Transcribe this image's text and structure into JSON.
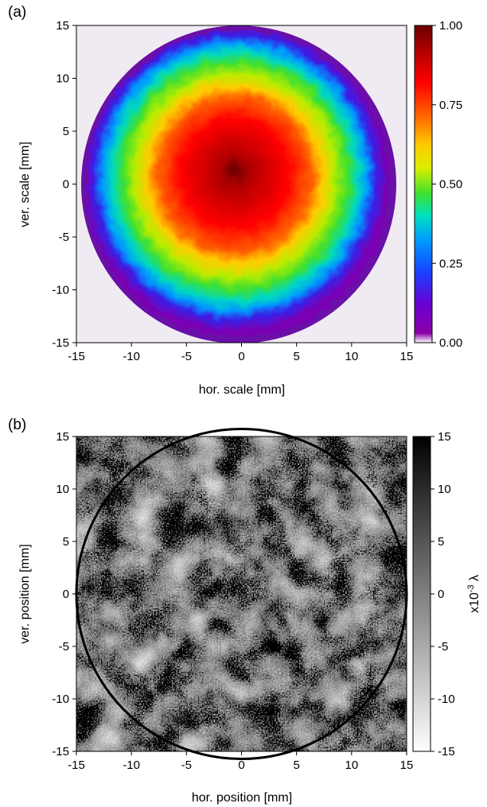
{
  "chart_data": [
    {
      "panel_label": "(a)",
      "type": "heatmap",
      "xlabel": "hor. scale [mm]",
      "ylabel": "ver. scale [mm]",
      "xlim": [
        -15,
        15
      ],
      "ylim": [
        -15,
        15
      ],
      "xticks": [
        -15,
        -10,
        -5,
        0,
        5,
        10,
        15
      ],
      "yticks": [
        15,
        10,
        5,
        0,
        -5,
        -10,
        -15
      ],
      "colorbar": {
        "range": [
          0,
          1
        ],
        "ticks": [
          "1.00",
          "0.75",
          "0.50",
          "0.25",
          "0.00"
        ],
        "colormap": [
          "#ffffff",
          "#7a00b4",
          "#3a1fe6",
          "#0098ff",
          "#00e0c0",
          "#40e030",
          "#d8ee00",
          "#ffcc00",
          "#ff6000",
          "#ff0000",
          "#b00000",
          "#6a0000"
        ],
        "label": ""
      },
      "description_of_field": {
        "beam_center_mm": [
          -0.5,
          0.5
        ],
        "beam_radius_mm": 14.2,
        "peak_value": 1.0,
        "edge_value": 0.1,
        "background_value": 0.02
      }
    },
    {
      "panel_label": "(b)",
      "type": "heatmap",
      "xlabel": "hor. position [mm]",
      "ylabel": "ver. position [mm]",
      "xlim": [
        -15,
        15
      ],
      "ylim": [
        -15,
        15
      ],
      "xticks": [
        -15,
        -10,
        -5,
        0,
        5,
        10,
        15
      ],
      "yticks": [
        15,
        10,
        5,
        0,
        -5,
        -10,
        -15
      ],
      "circle_overlay": {
        "center": [
          0,
          0
        ],
        "radius": 15,
        "color": "#000000"
      },
      "colorbar": {
        "range": [
          -15,
          15
        ],
        "ticks": [
          "15",
          "10",
          "5",
          "0",
          "-5",
          "-10",
          "-15"
        ],
        "colormap": [
          "#ffffff",
          "#000000"
        ],
        "label_prefix": "x10",
        "label_exponent": "-3",
        "label_suffix": " λ"
      }
    }
  ]
}
